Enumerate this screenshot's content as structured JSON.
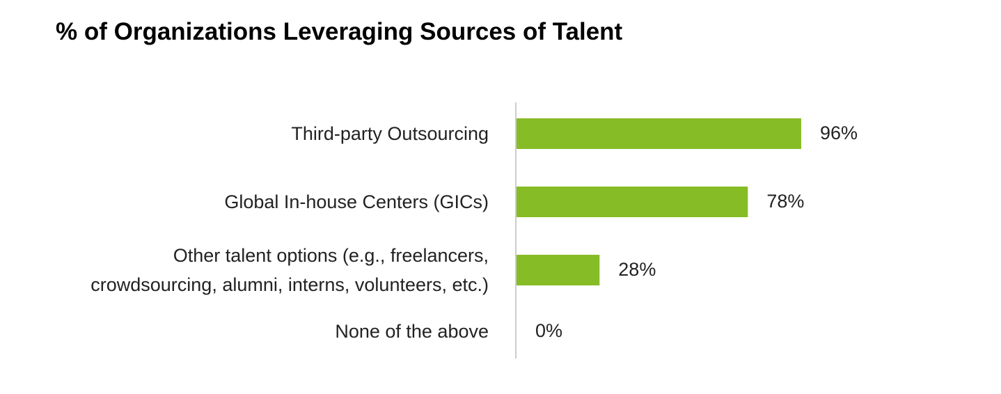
{
  "chart_data": {
    "type": "bar",
    "orientation": "horizontal",
    "title": "% of Organizations Leveraging Sources of Talent",
    "categories": [
      "Third-party Outsourcing",
      "Global In-house Centers (GICs)",
      "Other talent options (e.g., freelancers, crowdsourcing, alumni, interns, volunteers, etc.)",
      "None of the above"
    ],
    "values": [
      96,
      78,
      28,
      0
    ],
    "value_labels": [
      "96%",
      "78%",
      "28%",
      "0%"
    ],
    "color": "#86bc25"
  }
}
